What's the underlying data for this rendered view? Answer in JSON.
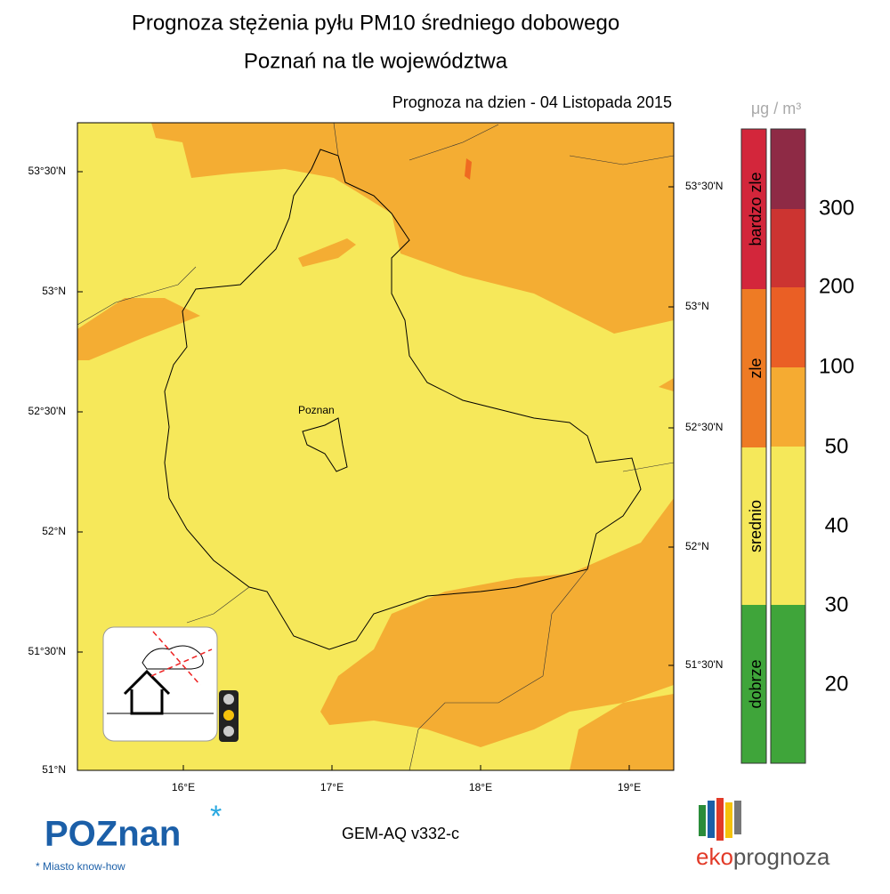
{
  "header": {
    "title": "Prognoza stężenia pyłu PM10 średniego dobowego",
    "subtitle": "Poznań na tle województwa",
    "date_label": "Prognoza na dzien -  04 Listopada 2015"
  },
  "map": {
    "city_label": "Poznan",
    "lat_ticks_left": [
      "53°30'N",
      "53°N",
      "52°30'N",
      "52°N",
      "51°30'N",
      "51°N"
    ],
    "lat_ticks_right": [
      "53°30'N",
      "53°N",
      "52°30'N",
      "52°N",
      "51°30'N"
    ],
    "lon_ticks": [
      "16°E",
      "17°E",
      "18°E",
      "19°E"
    ]
  },
  "legend": {
    "unit": "μg / m³",
    "categories": [
      {
        "name": "bardzo zle",
        "color": "#d3263b"
      },
      {
        "name": "zle",
        "color": "#ee7b24"
      },
      {
        "name": "srednio",
        "color": "#f5e85a"
      },
      {
        "name": "dobrze",
        "color": "#3fa53a"
      }
    ],
    "levels": [
      300,
      200,
      100,
      50,
      40,
      30,
      20
    ]
  },
  "footer": {
    "model": "GEM-AQ v332-c",
    "logo_left": "POZnan",
    "logo_left_tagline": "Miasto know-how",
    "logo_right_a": "eko",
    "logo_right_b": "prognoza"
  }
}
